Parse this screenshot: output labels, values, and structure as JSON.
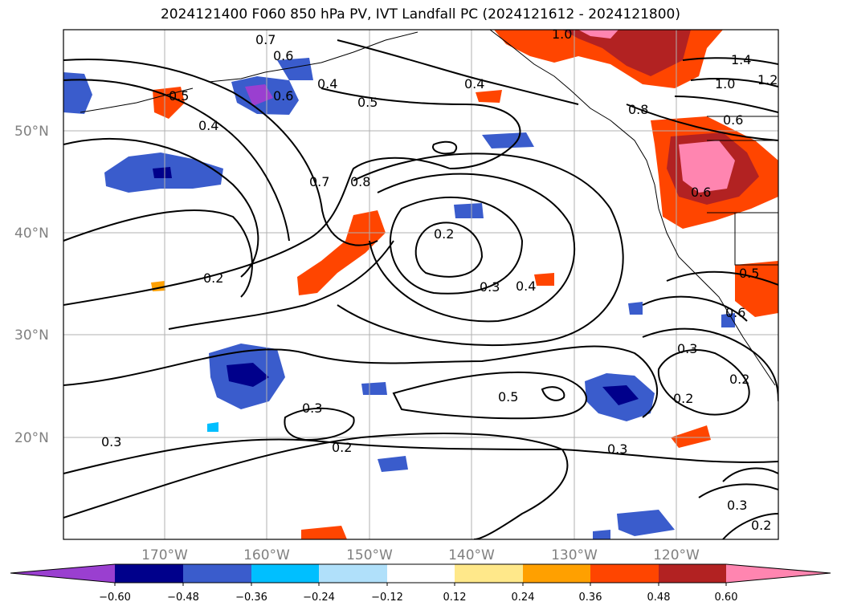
{
  "title": "2024121400 F060 850 hPa PV, IVT Landfall PC (2024121612 - 2024121800)",
  "map": {
    "latitude_labels": [
      "50°N",
      "40°N",
      "30°N",
      "20°N"
    ],
    "longitude_labels": [
      "170°W",
      "160°W",
      "150°W",
      "140°W",
      "130°W",
      "120°W"
    ],
    "gridlines": true,
    "contour_labels": [
      "0.7",
      "0.6",
      "0.6",
      "0.5",
      "0.4",
      "0.5",
      "0.4",
      "0.4",
      "0.7",
      "0.8",
      "0.2",
      "0.2",
      "0.3",
      "0.4",
      "0.5",
      "0.3",
      "0.3",
      "0.2",
      "0.2",
      "0.3",
      "1.0",
      "1.4",
      "1.2",
      "1.0",
      "0.8",
      "0.6",
      "0.6",
      "0.5",
      "0.6",
      "0.3",
      "0.2",
      "0.3",
      "0.2"
    ]
  },
  "colorbar": {
    "ticks": [
      "−0.60",
      "−0.48",
      "−0.36",
      "−0.24",
      "−0.12",
      "0.12",
      "0.24",
      "0.36",
      "0.48",
      "0.60"
    ],
    "colors": [
      "#9a3fd0",
      "#00008b",
      "#3a5ccc",
      "#00bfff",
      "#b0e0fa",
      "#ffffff",
      "#ffe88a",
      "#ffa000",
      "#ff4500",
      "#b22222",
      "#ff85b0"
    ],
    "extend": "both"
  }
}
